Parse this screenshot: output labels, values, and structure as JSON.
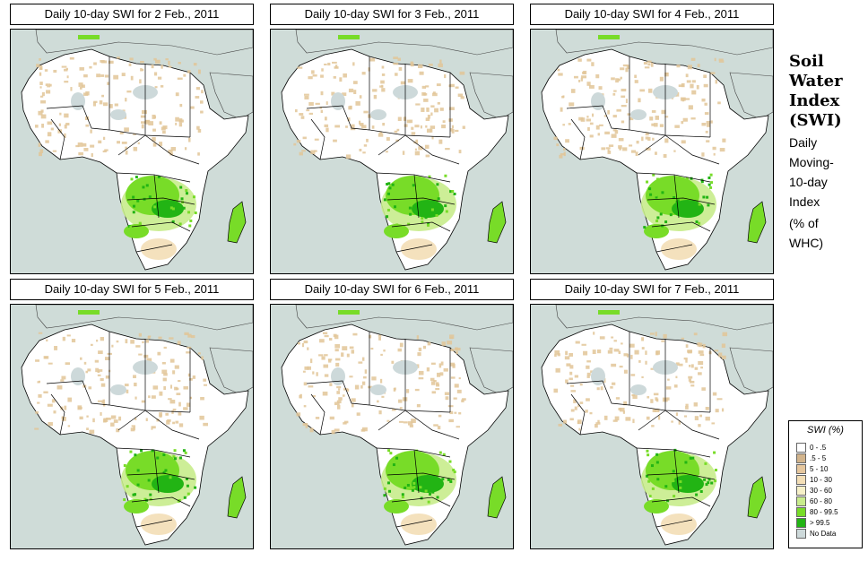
{
  "panels": [
    {
      "title": "Daily 10-day SWI for  2 Feb., 2011"
    },
    {
      "title": "Daily 10-day SWI for  3 Feb., 2011"
    },
    {
      "title": "Daily 10-day SWI for  4 Feb., 2011"
    },
    {
      "title": "Daily 10-day SWI for  5 Feb., 2011"
    },
    {
      "title": "Daily 10-day SWI for  6 Feb., 2011"
    },
    {
      "title": "Daily 10-day SWI for  7 Feb., 2011"
    }
  ],
  "side": {
    "title_lines": [
      "Soil",
      "Water",
      "Index",
      "(SWI)"
    ],
    "subtitle_lines": [
      "Daily",
      "Moving-",
      "10-day",
      "Index"
    ],
    "unit_lines": [
      "(% of",
      "WHC)"
    ]
  },
  "legend": {
    "title": "SWI (%)",
    "items": [
      {
        "label": "0 - .5",
        "color": "#ffffff"
      },
      {
        "label": ".5 - 5",
        "color": "#d2b48c"
      },
      {
        "label": "5 - 10",
        "color": "#e6c79e"
      },
      {
        "label": "10 - 30",
        "color": "#f3deb6"
      },
      {
        "label": "30 - 60",
        "color": "#f6f0c8"
      },
      {
        "label": "60 - 80",
        "color": "#c8ec8c"
      },
      {
        "label": "80 - 99.5",
        "color": "#78dc28"
      },
      {
        "label": "> 99.5",
        "color": "#22b414"
      },
      {
        "label": "No Data",
        "color": "#cdd9da"
      }
    ]
  },
  "colors": {
    "ocean": "#cfdcd8",
    "land": "#ffffff",
    "nodata": "#cdd9da",
    "dry": "#e2c698",
    "wet_light": "#c8ec8c",
    "wet_mid": "#78dc28",
    "wet_dark": "#22b414",
    "border": "#000000"
  }
}
